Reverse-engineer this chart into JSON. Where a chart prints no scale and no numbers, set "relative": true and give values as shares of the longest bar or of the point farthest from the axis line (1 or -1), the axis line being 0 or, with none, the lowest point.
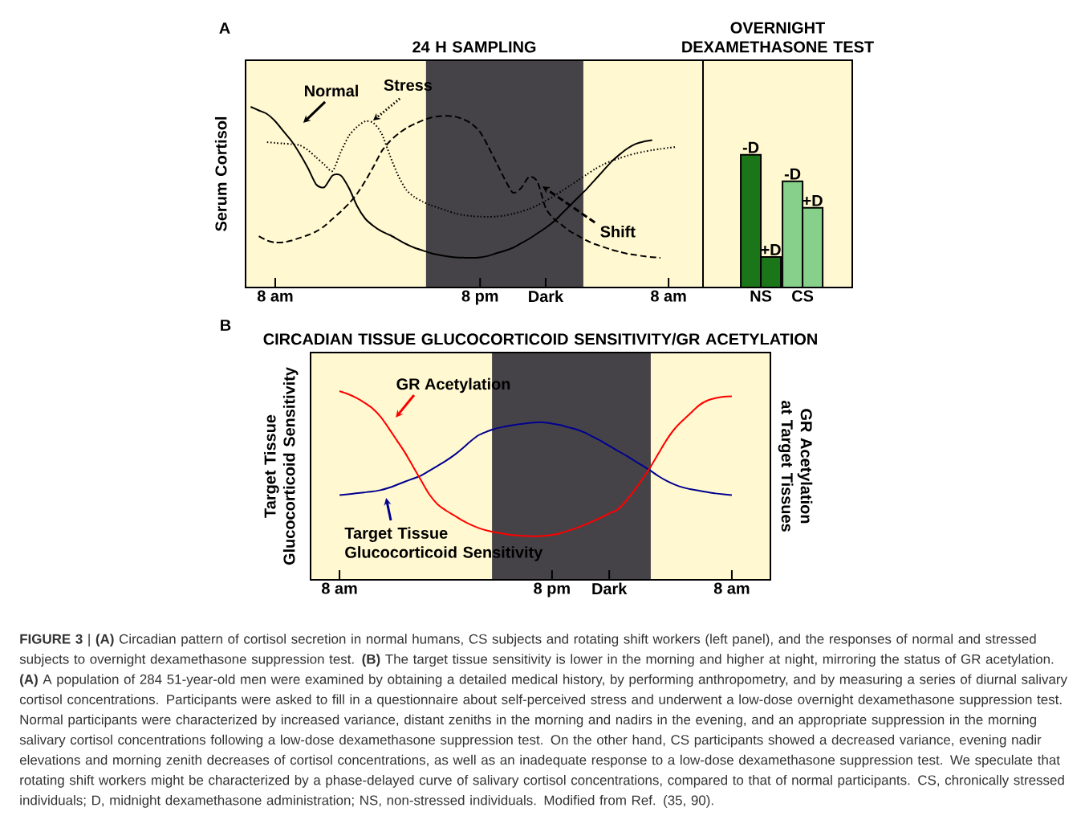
{
  "chart_data": [
    {
      "type": "line",
      "title": "24 H SAMPLING",
      "ylabel": "Serum Cortisol",
      "relative": true,
      "categories": [
        null,
        null,
        null,
        "8 am",
        null,
        null,
        null,
        null,
        null,
        null,
        null,
        null,
        null,
        null,
        null,
        null,
        null,
        null,
        null,
        null,
        null,
        null,
        null,
        null,
        null,
        null,
        null,
        null,
        "8 pm",
        null,
        null,
        null,
        null,
        null,
        null,
        null,
        "Dark",
        null,
        null,
        null,
        null,
        null,
        null,
        null,
        null,
        null,
        null,
        null,
        null,
        null,
        null,
        "8 am",
        null,
        null,
        null,
        null
      ],
      "annotations": [
        "A"
      ],
      "series": [
        {
          "name": "Normal",
          "color": "#000000",
          "line_style": "solid",
          "values": [
            1.0,
            0.98,
            0.96,
            0.92,
            0.865,
            0.81,
            0.74,
            0.66,
            0.57,
            0.555,
            0.62,
            0.62,
            0.55,
            0.45,
            0.38,
            0.34,
            0.31,
            0.29,
            0.265,
            0.24,
            0.22,
            0.205,
            0.19,
            0.18,
            0.172,
            0.167,
            0.165,
            0.164,
            0.167,
            0.175,
            0.19,
            0.203,
            0.22,
            0.245,
            0.27,
            0.3,
            0.33,
            0.365,
            0.41,
            0.455,
            0.5,
            0.545,
            0.595,
            0.645,
            0.695,
            0.735,
            0.77,
            0.795,
            0.808,
            0.815,
            null,
            null,
            null,
            null,
            null,
            null
          ]
        },
        {
          "name": "Stress",
          "color": "#000000",
          "line_style": "dotted",
          "values": [
            null,
            null,
            0.804,
            0.8,
            0.797,
            0.793,
            0.787,
            0.76,
            0.72,
            0.68,
            0.645,
            0.75,
            0.84,
            0.89,
            0.92,
            0.91,
            0.85,
            0.73,
            0.62,
            0.54,
            0.5,
            0.475,
            0.455,
            0.44,
            0.424,
            0.41,
            0.4,
            0.395,
            0.392,
            0.391,
            0.393,
            0.398,
            0.408,
            0.42,
            0.435,
            0.455,
            0.48,
            0.505,
            0.535,
            0.565,
            0.595,
            0.625,
            0.655,
            0.68,
            0.7,
            0.715,
            0.73,
            0.742,
            0.752,
            0.76,
            0.767,
            0.773,
            0.778,
            null,
            null,
            null
          ]
        },
        {
          "name": "Shift",
          "color": "#000000",
          "line_style": "dashed",
          "values": [
            null,
            0.284,
            0.26,
            0.249,
            0.25,
            0.26,
            0.275,
            0.29,
            0.31,
            0.34,
            0.38,
            0.42,
            0.465,
            0.52,
            0.59,
            0.67,
            0.755,
            0.81,
            0.85,
            0.882,
            0.905,
            0.925,
            0.94,
            0.948,
            0.95,
            0.945,
            0.93,
            0.905,
            0.86,
            0.78,
            0.69,
            0.6,
            0.525,
            0.55,
            0.613,
            0.585,
            0.44,
            0.38,
            0.345,
            0.31,
            0.285,
            0.26,
            0.24,
            0.225,
            0.21,
            0.198,
            0.187,
            0.18,
            0.173,
            0.168,
            0.164,
            null,
            null,
            null,
            null,
            null
          ]
        }
      ]
    },
    {
      "type": "bar",
      "title": "OVERNIGHT DEXAMETHASONE TEST",
      "relative": true,
      "categories": [
        "NS",
        "CS"
      ],
      "series": [
        {
          "name": "-D",
          "colors": [
            "#1b7519",
            "#87d08c"
          ],
          "values": [
            1.0,
            0.8
          ]
        },
        {
          "name": "+D",
          "colors": [
            "#1b7519",
            "#87d08c"
          ],
          "values": [
            0.23,
            0.6
          ]
        }
      ]
    },
    {
      "type": "line",
      "title": "CIRCADIAN TISSUE GLUCOCORTICOID SENSITIVITY/GR ACETYLATION",
      "ylabel": "Target Tissue Glucocorticoid Sensitivity",
      "y2label": "GR Acetylation at Target Tissues",
      "relative": true,
      "categories": [
        null,
        null,
        null,
        "8 am",
        null,
        null,
        null,
        null,
        null,
        null,
        null,
        null,
        null,
        null,
        null,
        null,
        null,
        null,
        null,
        null,
        null,
        null,
        null,
        null,
        null,
        null,
        null,
        null,
        null,
        "8 pm",
        null,
        null,
        null,
        null,
        null,
        null,
        "Dark",
        null,
        null,
        null,
        null,
        null,
        null,
        null,
        null,
        null,
        null,
        null,
        null,
        null,
        null,
        "8 am",
        null,
        null,
        null,
        null
      ],
      "annotations": [
        "B",
        "**FIGURE 3** | **(A)** Circadian pattern of cortisol secretion in normal humans, CS subjects and rotating shift workers (left panel), and the responses of normal and stressed subjects to overnight dexamethasone suppression test. **(B)** The target tissue sensitivity is lower in the morning and higher at night, mirroring the status of GR acetylation. **(A)** A population of 284 51-year-old men were examined by obtaining a detailed medical history, by performing anthropometry, and by measuring a series of diurnal salivary cortisol concentrations. Participants were asked to fill in a questionnaire about self-perceived stress and underwent a low-dose overnight dexamethasone suppression test. Normal participants were characterized by increased variance, distant zeniths in the morning and nadirs in the evening, and an appropriate suppression in the morning salivary cortisol concentrations following a low-dose dexamethasone suppression test. On the other hand, CS participants showed a decreased variance, evening nadir elevations and morning zenith decreases of cortisol concentrations, as well as an inadequate response to a low-dose dexamethasone suppression test. We speculate that rotating shift workers might be characterized by a phase-delayed curve of salivary cortisol concentrations, compared to that of normal participants. CS, chronically stressed individuals; D, midnight dexamethasone administration; NS, non-stressed individuals. Modified from Ref. (35, 90)."
      ],
      "series": [
        {
          "name": "Target Tissue Glucocorticoid Sensitivity",
          "color": "#000090",
          "line_style": "solid",
          "values": [
            null,
            null,
            null,
            0.449,
            0.453,
            0.458,
            0.463,
            0.468,
            0.475,
            0.487,
            0.503,
            0.52,
            0.536,
            0.553,
            0.578,
            0.604,
            0.63,
            0.66,
            0.695,
            0.733,
            0.766,
            0.785,
            0.8,
            0.81,
            0.818,
            0.825,
            0.83,
            0.834,
            0.834,
            0.828,
            0.82,
            0.808,
            0.797,
            0.78,
            0.758,
            0.736,
            0.71,
            0.685,
            0.66,
            0.633,
            0.607,
            0.58,
            0.55,
            0.525,
            0.505,
            0.49,
            0.48,
            0.472,
            0.465,
            0.458,
            0.453,
            0.449,
            null,
            null,
            null,
            null
          ]
        },
        {
          "name": "GR Acetylation",
          "color": "#ff0000",
          "line_style": "solid",
          "values": [
            null,
            null,
            null,
            1.0,
            0.985,
            0.965,
            0.94,
            0.91,
            0.865,
            0.805,
            0.74,
            0.675,
            0.6,
            0.525,
            0.452,
            0.4,
            0.368,
            0.342,
            0.315,
            0.293,
            0.275,
            0.262,
            0.252,
            0.245,
            0.238,
            0.234,
            0.232,
            0.231,
            0.233,
            0.238,
            0.247,
            0.26,
            0.275,
            0.292,
            0.31,
            0.33,
            0.352,
            0.372,
            0.415,
            0.47,
            0.53,
            0.595,
            0.668,
            0.74,
            0.8,
            0.845,
            0.885,
            0.925,
            0.95,
            0.963,
            0.97,
            0.972,
            null,
            null,
            null,
            null
          ]
        }
      ]
    }
  ]
}
